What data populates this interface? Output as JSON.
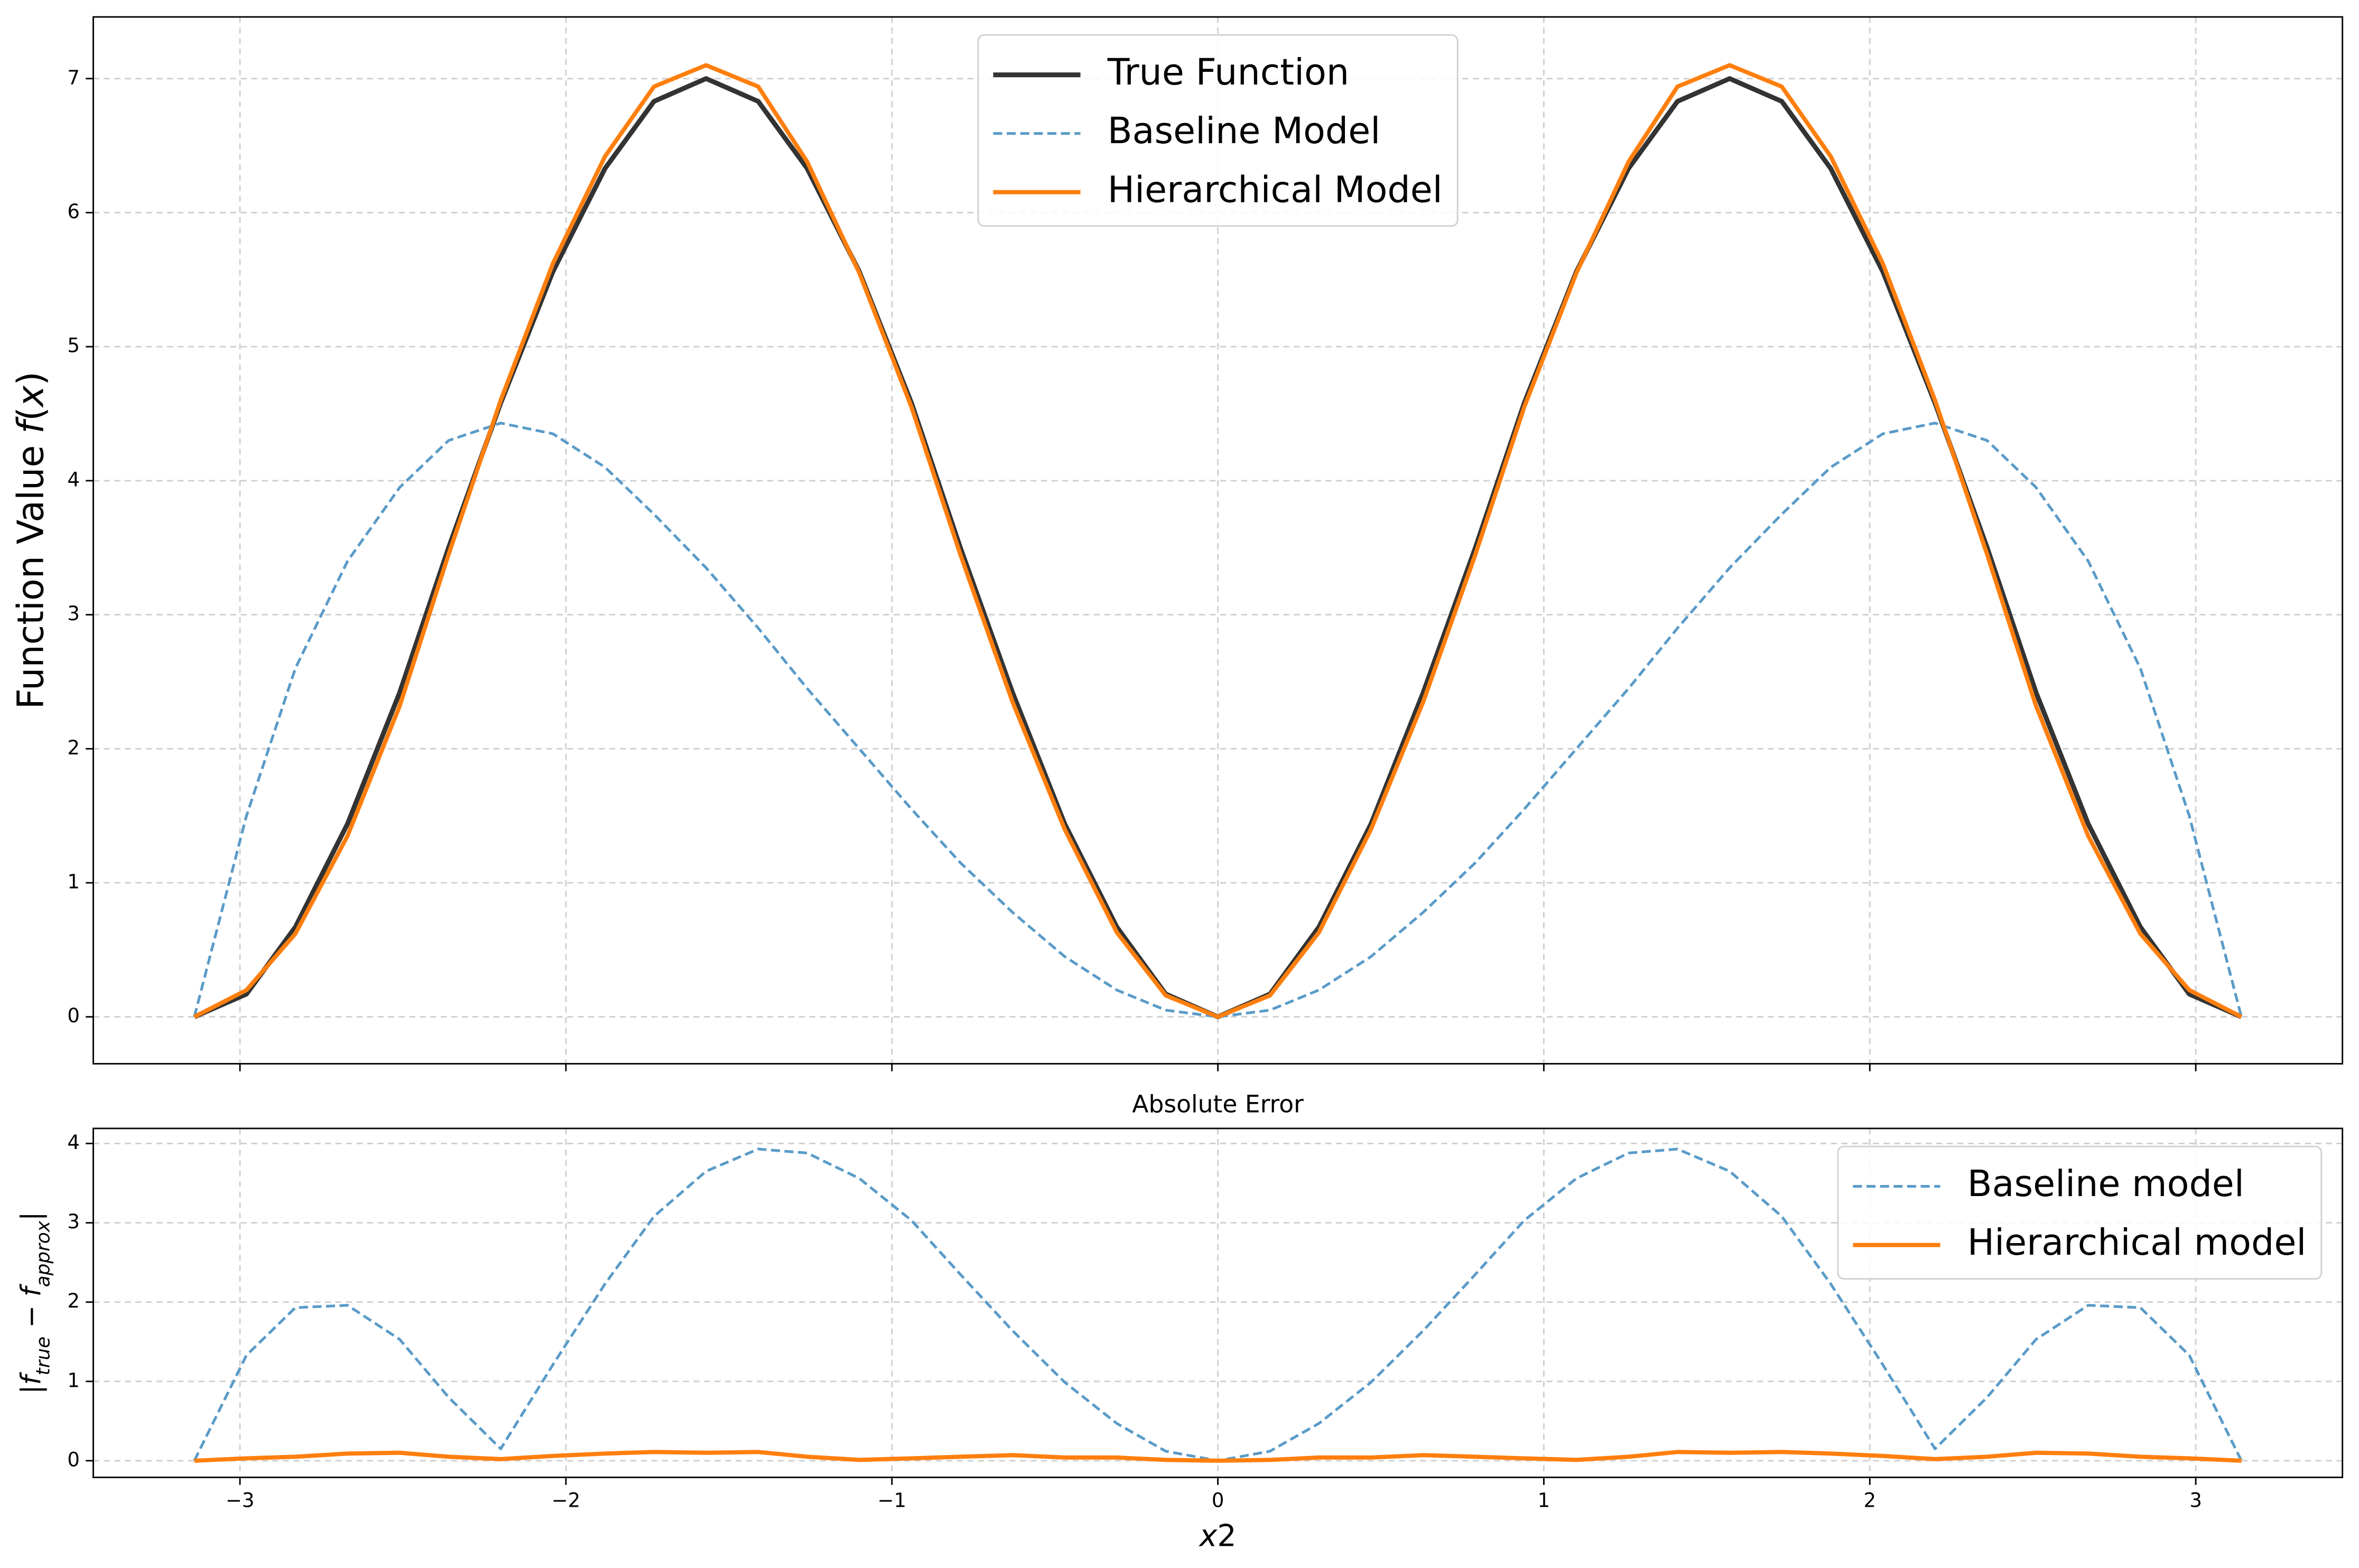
{
  "chart_data": [
    {
      "type": "line",
      "ylabel": [
        {
          "text": "Function Value "
        },
        {
          "text": "f",
          "style": "italic"
        },
        {
          "text": "("
        },
        {
          "text": "x",
          "style": "italic"
        },
        {
          "text": ")"
        }
      ],
      "x": [
        -3.14,
        -2.98,
        -2.83,
        -2.67,
        -2.51,
        -2.36,
        -2.2,
        -2.04,
        -1.88,
        -1.73,
        -1.57,
        -1.41,
        -1.26,
        -1.1,
        -0.94,
        -0.79,
        -0.63,
        -0.47,
        -0.31,
        -0.16,
        0,
        0.16,
        0.31,
        0.47,
        0.63,
        0.79,
        0.94,
        1.1,
        1.26,
        1.41,
        1.57,
        1.73,
        1.88,
        2.04,
        2.2,
        2.36,
        2.51,
        2.67,
        2.83,
        2.98,
        3.14
      ],
      "series": [
        {
          "name": "True Function",
          "color": "#333333",
          "width": 3.2,
          "dashed": false,
          "values": [
            0,
            0.17,
            0.67,
            1.44,
            2.42,
            3.5,
            4.58,
            5.56,
            6.33,
            6.83,
            7,
            6.83,
            6.33,
            5.56,
            4.58,
            3.5,
            2.42,
            1.44,
            0.67,
            0.17,
            0,
            0.17,
            0.67,
            1.44,
            2.42,
            3.5,
            4.58,
            5.56,
            6.33,
            6.83,
            7,
            6.83,
            6.33,
            5.56,
            4.58,
            3.5,
            2.42,
            1.44,
            0.67,
            0.17,
            0
          ]
        },
        {
          "name": "Baseline Model",
          "color": "#5a9bc8",
          "width": 1.8,
          "dashed": true,
          "values": [
            0,
            1.5,
            2.6,
            3.4,
            3.95,
            4.3,
            4.43,
            4.35,
            4.1,
            3.75,
            3.35,
            2.9,
            2.45,
            2.0,
            1.55,
            1.15,
            0.78,
            0.45,
            0.2,
            0.05,
            0,
            0.05,
            0.2,
            0.45,
            0.78,
            1.15,
            1.55,
            2.0,
            2.45,
            2.9,
            3.35,
            3.75,
            4.1,
            4.35,
            4.43,
            4.3,
            3.95,
            3.4,
            2.6,
            1.5,
            0
          ]
        },
        {
          "name": "Hierarchical Model",
          "color": "#ff7f0e",
          "width": 2.8,
          "dashed": false,
          "values": [
            0,
            0.2,
            0.62,
            1.35,
            2.32,
            3.45,
            4.6,
            5.62,
            6.42,
            6.94,
            7.1,
            6.94,
            6.38,
            5.55,
            4.55,
            3.45,
            2.35,
            1.4,
            0.63,
            0.16,
            0,
            0.16,
            0.63,
            1.4,
            2.35,
            3.45,
            4.55,
            5.55,
            6.38,
            6.94,
            7.1,
            6.94,
            6.42,
            5.62,
            4.6,
            3.45,
            2.32,
            1.35,
            0.62,
            0.2,
            0
          ]
        }
      ],
      "xlim": [
        -3.45,
        3.45
      ],
      "xticks": [
        -3,
        -2,
        -1,
        0,
        1,
        2,
        3
      ],
      "xticklabels": false,
      "ylim": [
        -0.35,
        7.46
      ],
      "yticks": [
        0,
        1,
        2,
        3,
        4,
        5,
        6,
        7
      ],
      "grid": true,
      "legend": "upper center"
    },
    {
      "type": "line",
      "title": "Absolute Error",
      "xlabel": [
        {
          "text": "x",
          "style": "italic"
        },
        {
          "text": "2"
        }
      ],
      "ylabel": [
        {
          "text": "|"
        },
        {
          "text": "f",
          "style": "italic"
        },
        {
          "text": "true",
          "style": "sub"
        },
        {
          "text": " − "
        },
        {
          "text": "f",
          "style": "italic"
        },
        {
          "text": "approx",
          "style": "sub"
        },
        {
          "text": "|"
        }
      ],
      "x": [
        -3.14,
        -2.98,
        -2.83,
        -2.67,
        -2.51,
        -2.36,
        -2.2,
        -2.04,
        -1.88,
        -1.73,
        -1.57,
        -1.41,
        -1.26,
        -1.1,
        -0.94,
        -0.79,
        -0.63,
        -0.47,
        -0.31,
        -0.16,
        0,
        0.16,
        0.31,
        0.47,
        0.63,
        0.79,
        0.94,
        1.1,
        1.26,
        1.41,
        1.57,
        1.73,
        1.88,
        2.04,
        2.2,
        2.36,
        2.51,
        2.67,
        2.83,
        2.98,
        3.14
      ],
      "series": [
        {
          "name": "Baseline model",
          "color": "#5a9bc8",
          "width": 1.8,
          "dashed": true,
          "values": [
            0,
            1.33,
            1.93,
            1.96,
            1.53,
            0.8,
            0.15,
            1.21,
            2.23,
            3.08,
            3.65,
            3.93,
            3.88,
            3.56,
            3.03,
            2.35,
            1.64,
            0.99,
            0.47,
            0.12,
            0,
            0.12,
            0.47,
            0.99,
            1.64,
            2.35,
            3.03,
            3.56,
            3.88,
            3.93,
            3.65,
            3.08,
            2.23,
            1.21,
            0.15,
            0.8,
            1.53,
            1.96,
            1.93,
            1.33,
            0
          ]
        },
        {
          "name": "Hierarchical model",
          "color": "#ff7f0e",
          "width": 2.8,
          "dashed": false,
          "values": [
            0,
            0.03,
            0.05,
            0.09,
            0.1,
            0.05,
            0.02,
            0.06,
            0.09,
            0.11,
            0.1,
            0.11,
            0.05,
            0.01,
            0.03,
            0.05,
            0.07,
            0.04,
            0.04,
            0.01,
            0,
            0.01,
            0.04,
            0.04,
            0.07,
            0.05,
            0.03,
            0.01,
            0.05,
            0.11,
            0.1,
            0.11,
            0.09,
            0.06,
            0.02,
            0.05,
            0.1,
            0.09,
            0.05,
            0.03,
            0
          ]
        }
      ],
      "xlim": [
        -3.45,
        3.45
      ],
      "xticks": [
        {
          "value": -3,
          "label": "−3"
        },
        {
          "value": -2,
          "label": "−2"
        },
        {
          "value": -1,
          "label": "−1"
        },
        0,
        1,
        2,
        3
      ],
      "xticklabels": true,
      "ylim": [
        -0.21,
        4.19
      ],
      "yticks": [
        0,
        1,
        2,
        3,
        4
      ],
      "grid": true,
      "legend": "upper right"
    }
  ]
}
